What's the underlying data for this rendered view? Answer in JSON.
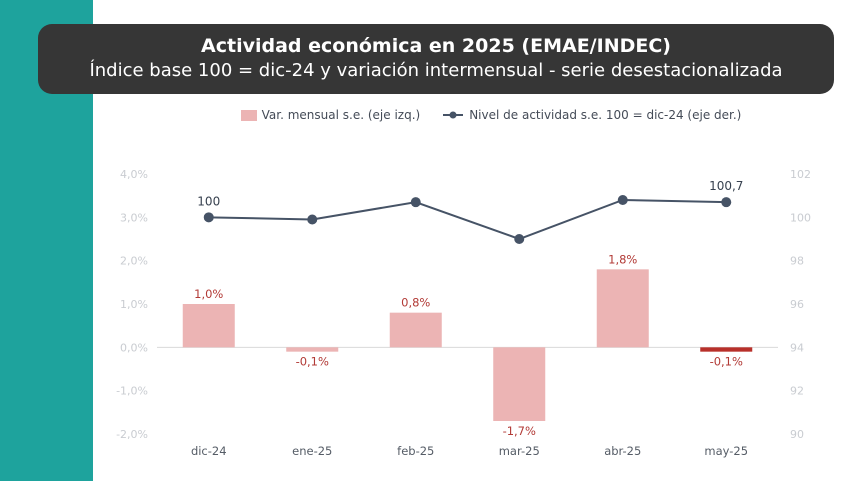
{
  "colors": {
    "sidebar": "#1ea39d",
    "title_bg": "#363636",
    "bar": "#ecb4b4",
    "bar_highlight": "#b8302a",
    "line": "#465366",
    "negative_label": "#b23a36",
    "axis_label": "#c9ccd1"
  },
  "title": "Actividad económica en 2025 (EMAE/INDEC)",
  "subtitle": "Índice base 100 = dic-24 y variación intermensual - serie desestacionalizada",
  "legend": {
    "bar_label": "Var. mensual s.e. (eje izq.)",
    "line_label": "Nivel de actividad s.e. 100 = dic-24 (eje der.)"
  },
  "chart_data": {
    "type": "bar",
    "categories": [
      "dic-24",
      "ene-25",
      "feb-25",
      "mar-25",
      "abr-25",
      "may-25"
    ],
    "series": [
      {
        "name": "Var. mensual s.e. (eje izq.)",
        "type": "bar",
        "axis": "left",
        "values": [
          1.0,
          -0.1,
          0.8,
          -1.7,
          1.8,
          -0.1
        ],
        "labels": [
          "1,0%",
          "-0,1%",
          "0,8%",
          "-1,7%",
          "1,8%",
          "-0,1%"
        ],
        "highlight_index": 5
      },
      {
        "name": "Nivel de actividad s.e. 100 = dic-24 (eje der.)",
        "type": "line",
        "axis": "right",
        "values": [
          100.0,
          99.9,
          100.7,
          99.0,
          100.8,
          100.7
        ],
        "labels": [
          "100",
          "",
          "",
          "",
          "",
          "100,7"
        ]
      }
    ],
    "left_axis": {
      "ylim": [
        -2.0,
        4.0
      ],
      "ticks": [
        4.0,
        3.0,
        2.0,
        1.0,
        0.0,
        -1.0,
        -2.0
      ],
      "tick_labels": [
        "4,0%",
        "3,0%",
        "2,0%",
        "1,0%",
        "0,0%",
        "-1,0%",
        "-2,0%"
      ]
    },
    "right_axis": {
      "ylim": [
        90,
        102
      ],
      "ticks": [
        102,
        100,
        98,
        96,
        94,
        92,
        90
      ],
      "tick_labels": [
        "102",
        "100",
        "98",
        "96",
        "94",
        "92",
        "90"
      ]
    },
    "grid": false,
    "legend_position": "top"
  }
}
